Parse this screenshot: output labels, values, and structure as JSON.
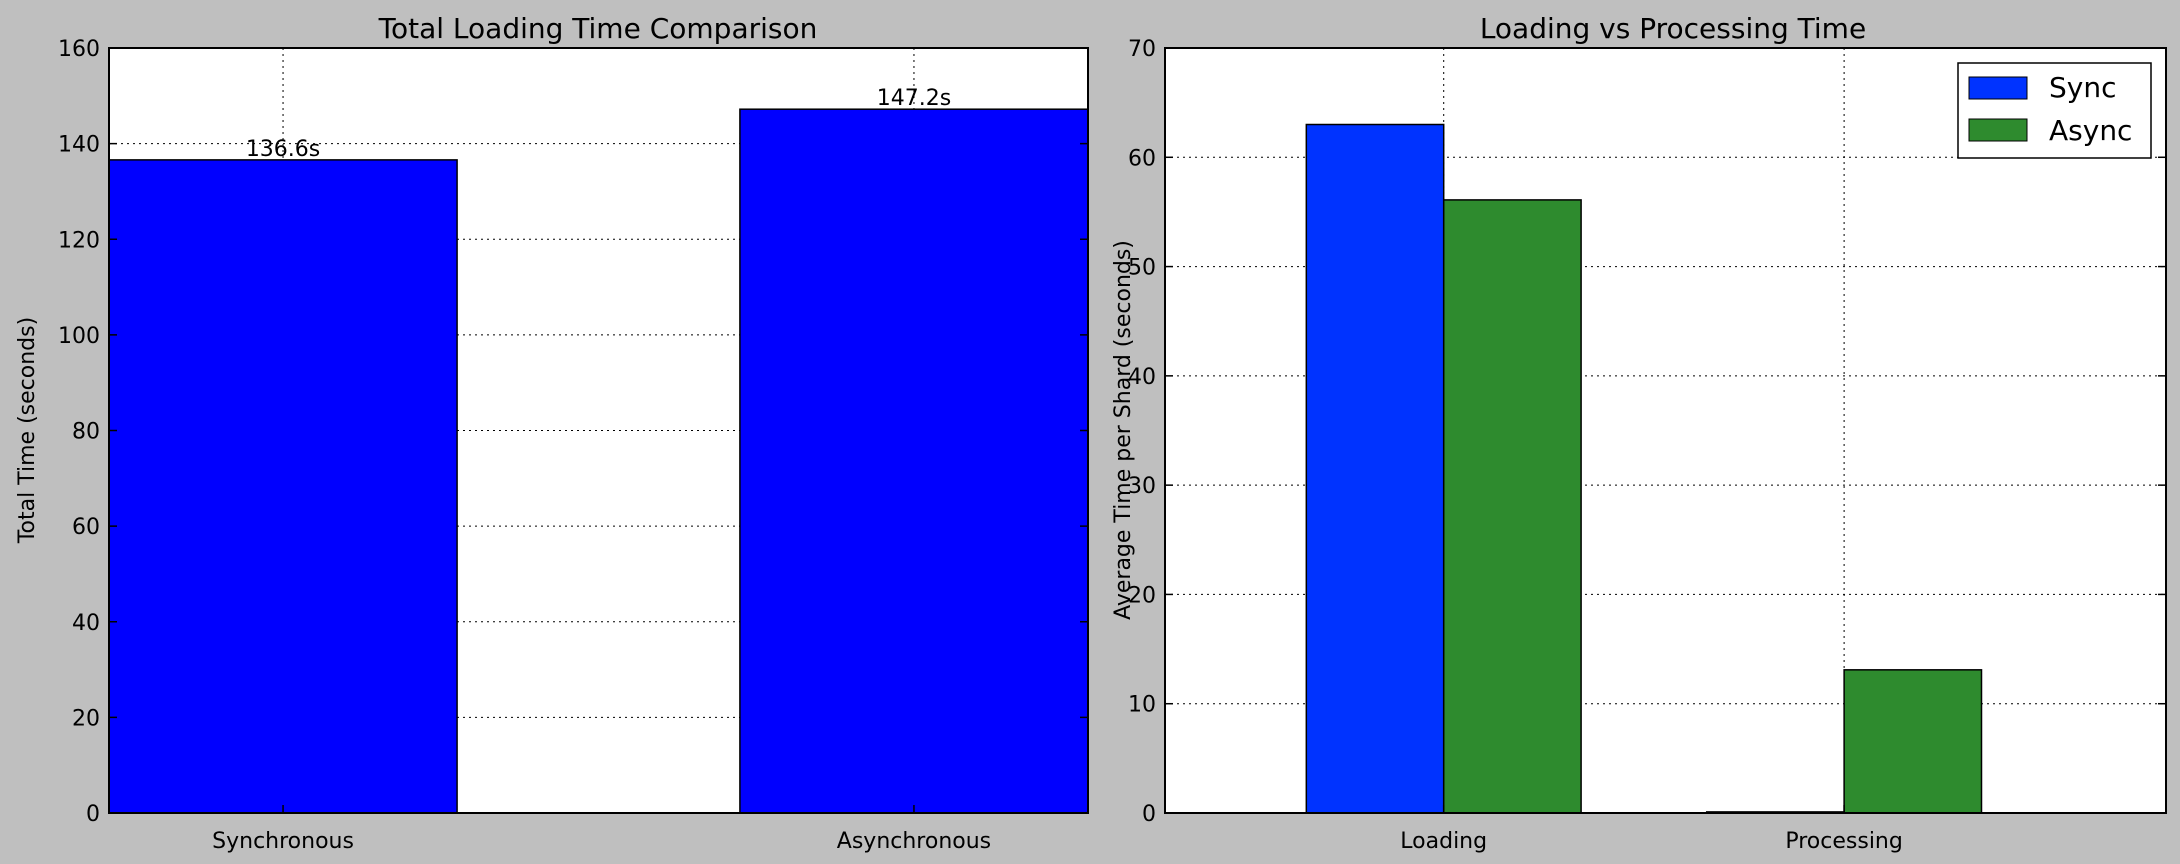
{
  "colors": {
    "figure_bg": "#bfbfbf",
    "axes_bg": "#ffffff",
    "sync_bar": "#0000ff",
    "async_bar": "#008000"
  },
  "chart_data": [
    {
      "type": "bar",
      "title": "Total Loading Time Comparison",
      "xlabel": "",
      "ylabel": "Total Time (seconds)",
      "categories": [
        "Synchronous",
        "Asynchronous"
      ],
      "values": [
        136.6,
        147.2
      ],
      "data_labels": [
        "136.6s",
        "147.2s"
      ],
      "ylim": [
        0,
        160
      ],
      "yticks": [
        0,
        20,
        40,
        60,
        80,
        100,
        120,
        140,
        160
      ],
      "grid": true
    },
    {
      "type": "bar",
      "title": "Loading vs Processing Time",
      "xlabel": "",
      "ylabel": "Average Time per Shard (seconds)",
      "categories": [
        "Loading",
        "Processing"
      ],
      "series": [
        {
          "name": "Sync",
          "values": [
            63.0,
            0.1
          ]
        },
        {
          "name": "Async",
          "values": [
            56.1,
            13.1
          ]
        }
      ],
      "ylim": [
        0,
        70
      ],
      "yticks": [
        0,
        10,
        20,
        30,
        40,
        50,
        60,
        70
      ],
      "grid": true,
      "legend": "top-right"
    }
  ]
}
